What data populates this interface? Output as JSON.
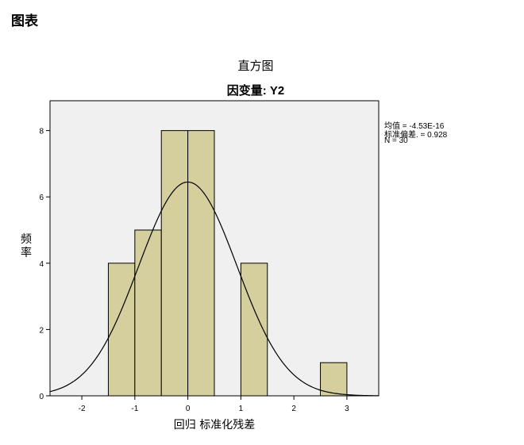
{
  "page": {
    "section_title": "图表"
  },
  "chart_data": {
    "type": "bar",
    "title": "直方图",
    "subtitle": "因变量: Y2",
    "xlabel": "回归 标准化残差",
    "ylabel": "频率",
    "xlim": [
      -2.6,
      3.6
    ],
    "ylim": [
      0,
      8.9
    ],
    "xticks": [
      "-2",
      "-1",
      "0",
      "1",
      "2",
      "3"
    ],
    "yticks": [
      "0",
      "2",
      "4",
      "6",
      "8"
    ],
    "bins": [
      {
        "from": -1.5,
        "to": -1.0,
        "count": 4
      },
      {
        "from": -1.0,
        "to": -0.5,
        "count": 5
      },
      {
        "from": -0.5,
        "to": 0.0,
        "count": 8
      },
      {
        "from": 0.0,
        "to": 0.5,
        "count": 8
      },
      {
        "from": 1.0,
        "to": 1.5,
        "count": 4
      },
      {
        "from": 2.5,
        "to": 3.0,
        "count": 1
      }
    ],
    "normal_curve": {
      "mean": -4.53e-16,
      "sd": 0.928,
      "n": 30,
      "bin_width": 0.5
    },
    "stats": [
      "均值 = -4.53E-16",
      "标准偏差. = 0.928",
      "N = 30"
    ],
    "colors": {
      "bar_fill": "#d4cf9c",
      "plot_bg": "#f0f0f0",
      "stroke": "#000000"
    },
    "grid": false
  }
}
